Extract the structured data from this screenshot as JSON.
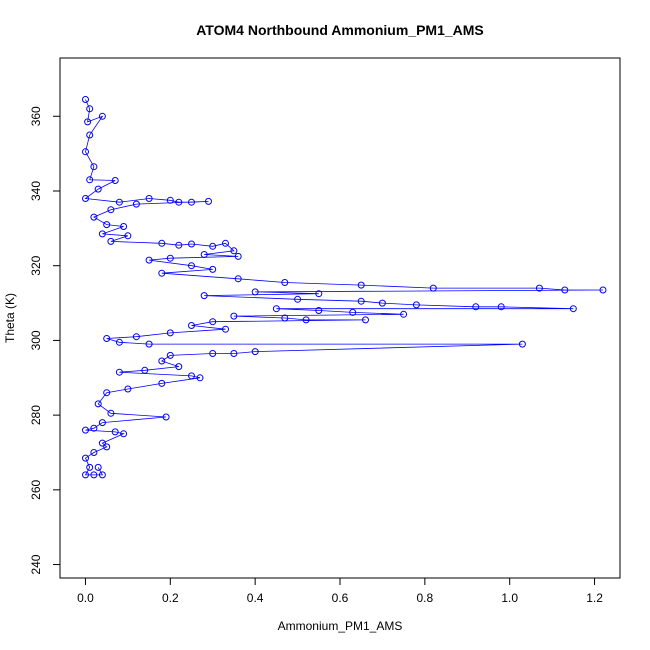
{
  "chart_data": {
    "type": "scatter",
    "title": "ATOM4 Northbound Ammonium_PM1_AMS",
    "xlabel": "Ammonium_PM1_AMS",
    "ylabel": "Theta (K)",
    "xlim": [
      -0.06,
      1.26
    ],
    "ylim": [
      236.4,
      375.6
    ],
    "x_ticks": [
      "0.0",
      "0.2",
      "0.4",
      "0.6",
      "0.8",
      "1.0",
      "1.2"
    ],
    "y_ticks": [
      "240",
      "260",
      "280",
      "300",
      "320",
      "340",
      "360"
    ],
    "grid": false,
    "series": [
      {
        "color": "#0000ff",
        "style": "points-connected-by-lines",
        "points": [
          [
            0.0,
            364.5
          ],
          [
            0.01,
            362.0
          ],
          [
            0.005,
            358.5
          ],
          [
            0.04,
            360.0
          ],
          [
            0.01,
            355.0
          ],
          [
            0.0,
            350.5
          ],
          [
            0.02,
            346.5
          ],
          [
            0.01,
            343.0
          ],
          [
            0.07,
            342.8
          ],
          [
            0.03,
            340.5
          ],
          [
            0.0,
            338.0
          ],
          [
            0.08,
            337.0
          ],
          [
            0.15,
            338.0
          ],
          [
            0.2,
            337.5
          ],
          [
            0.22,
            337.0
          ],
          [
            0.25,
            337.0
          ],
          [
            0.29,
            337.2
          ],
          [
            0.12,
            336.5
          ],
          [
            0.06,
            335.0
          ],
          [
            0.02,
            333.0
          ],
          [
            0.05,
            331.0
          ],
          [
            0.09,
            330.5
          ],
          [
            0.04,
            328.5
          ],
          [
            0.1,
            328.0
          ],
          [
            0.06,
            326.5
          ],
          [
            0.18,
            326.0
          ],
          [
            0.22,
            325.5
          ],
          [
            0.25,
            325.8
          ],
          [
            0.3,
            325.2
          ],
          [
            0.33,
            326.0
          ],
          [
            0.35,
            324.0
          ],
          [
            0.28,
            323.0
          ],
          [
            0.36,
            322.5
          ],
          [
            0.2,
            322.0
          ],
          [
            0.15,
            321.5
          ],
          [
            0.25,
            320.0
          ],
          [
            0.3,
            319.0
          ],
          [
            0.18,
            318.0
          ],
          [
            0.36,
            316.5
          ],
          [
            0.47,
            315.5
          ],
          [
            0.65,
            314.8
          ],
          [
            0.82,
            314.0
          ],
          [
            1.07,
            314.0
          ],
          [
            1.13,
            313.5
          ],
          [
            1.22,
            313.5
          ],
          [
            0.4,
            313.0
          ],
          [
            0.55,
            312.5
          ],
          [
            0.28,
            312.0
          ],
          [
            0.5,
            311.0
          ],
          [
            0.65,
            310.5
          ],
          [
            0.7,
            310.0
          ],
          [
            0.78,
            309.5
          ],
          [
            0.92,
            309.0
          ],
          [
            0.98,
            309.0
          ],
          [
            1.15,
            308.5
          ],
          [
            0.45,
            308.5
          ],
          [
            0.55,
            308.0
          ],
          [
            0.63,
            307.5
          ],
          [
            0.75,
            307.0
          ],
          [
            0.35,
            306.5
          ],
          [
            0.47,
            306.0
          ],
          [
            0.52,
            305.5
          ],
          [
            0.66,
            305.5
          ],
          [
            0.3,
            305.0
          ],
          [
            0.25,
            304.0
          ],
          [
            0.33,
            303.0
          ],
          [
            0.2,
            302.0
          ],
          [
            0.12,
            301.0
          ],
          [
            0.05,
            300.5
          ],
          [
            0.08,
            299.5
          ],
          [
            0.15,
            299.0
          ],
          [
            1.03,
            299.0
          ],
          [
            0.4,
            297.0
          ],
          [
            0.35,
            296.5
          ],
          [
            0.3,
            296.5
          ],
          [
            0.2,
            296.0
          ],
          [
            0.18,
            294.5
          ],
          [
            0.22,
            293.0
          ],
          [
            0.14,
            292.0
          ],
          [
            0.08,
            291.5
          ],
          [
            0.25,
            290.5
          ],
          [
            0.27,
            290.0
          ],
          [
            0.18,
            288.5
          ],
          [
            0.1,
            287.0
          ],
          [
            0.05,
            286.0
          ],
          [
            0.03,
            283.0
          ],
          [
            0.06,
            280.5
          ],
          [
            0.19,
            279.5
          ],
          [
            0.04,
            278.0
          ],
          [
            0.02,
            276.5
          ],
          [
            0.0,
            276.0
          ],
          [
            0.07,
            275.5
          ],
          [
            0.09,
            275.0
          ],
          [
            0.04,
            272.5
          ],
          [
            0.05,
            271.5
          ],
          [
            0.02,
            270.0
          ],
          [
            0.0,
            268.5
          ],
          [
            0.01,
            266.0
          ],
          [
            0.0,
            264.0
          ],
          [
            0.02,
            264.0
          ],
          [
            0.04,
            264.0
          ],
          [
            0.03,
            266.0
          ]
        ]
      }
    ]
  }
}
